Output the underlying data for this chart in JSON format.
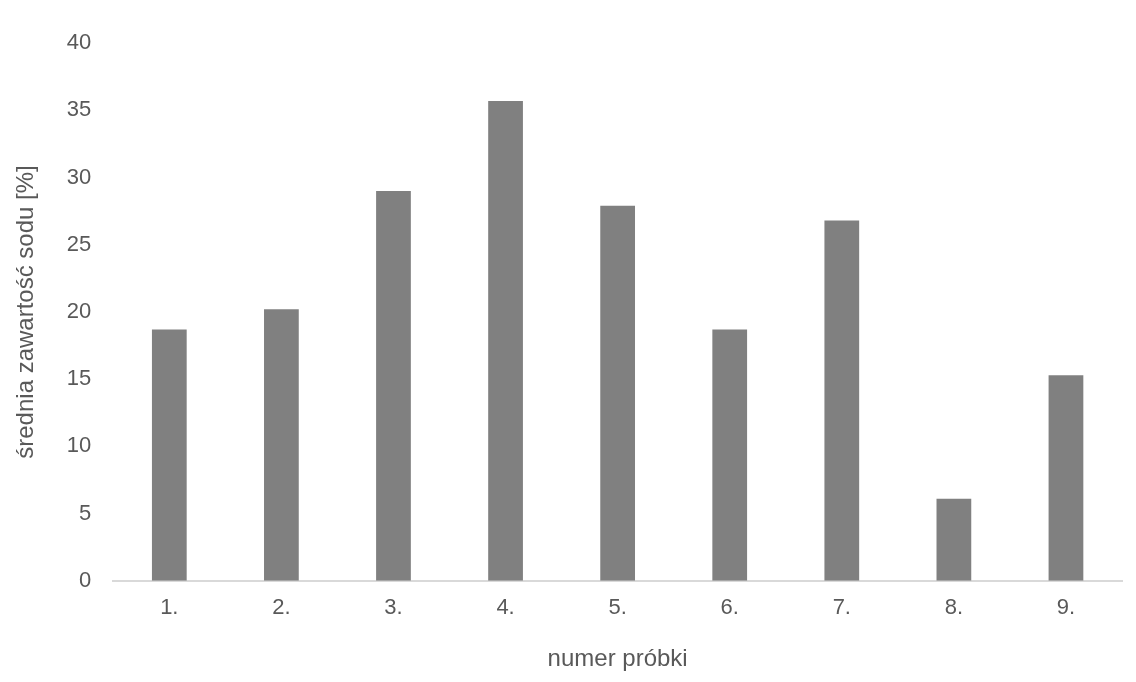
{
  "chart_data": {
    "type": "bar",
    "xlabel": "numer próbki",
    "ylabel": "średnia zawartość sodu [%]",
    "categories": [
      "1.",
      "2.",
      "3.",
      "4.",
      "5.",
      "6.",
      "7.",
      "8.",
      "9."
    ],
    "values": [
      18.7,
      20.2,
      29.0,
      35.7,
      27.9,
      18.7,
      26.8,
      6.1,
      15.3
    ],
    "color": "#808080",
    "ylim": [
      0,
      40
    ],
    "yticks": [
      0,
      5,
      10,
      15,
      20,
      25,
      30,
      35,
      40
    ],
    "grid": false,
    "legend": false
  }
}
